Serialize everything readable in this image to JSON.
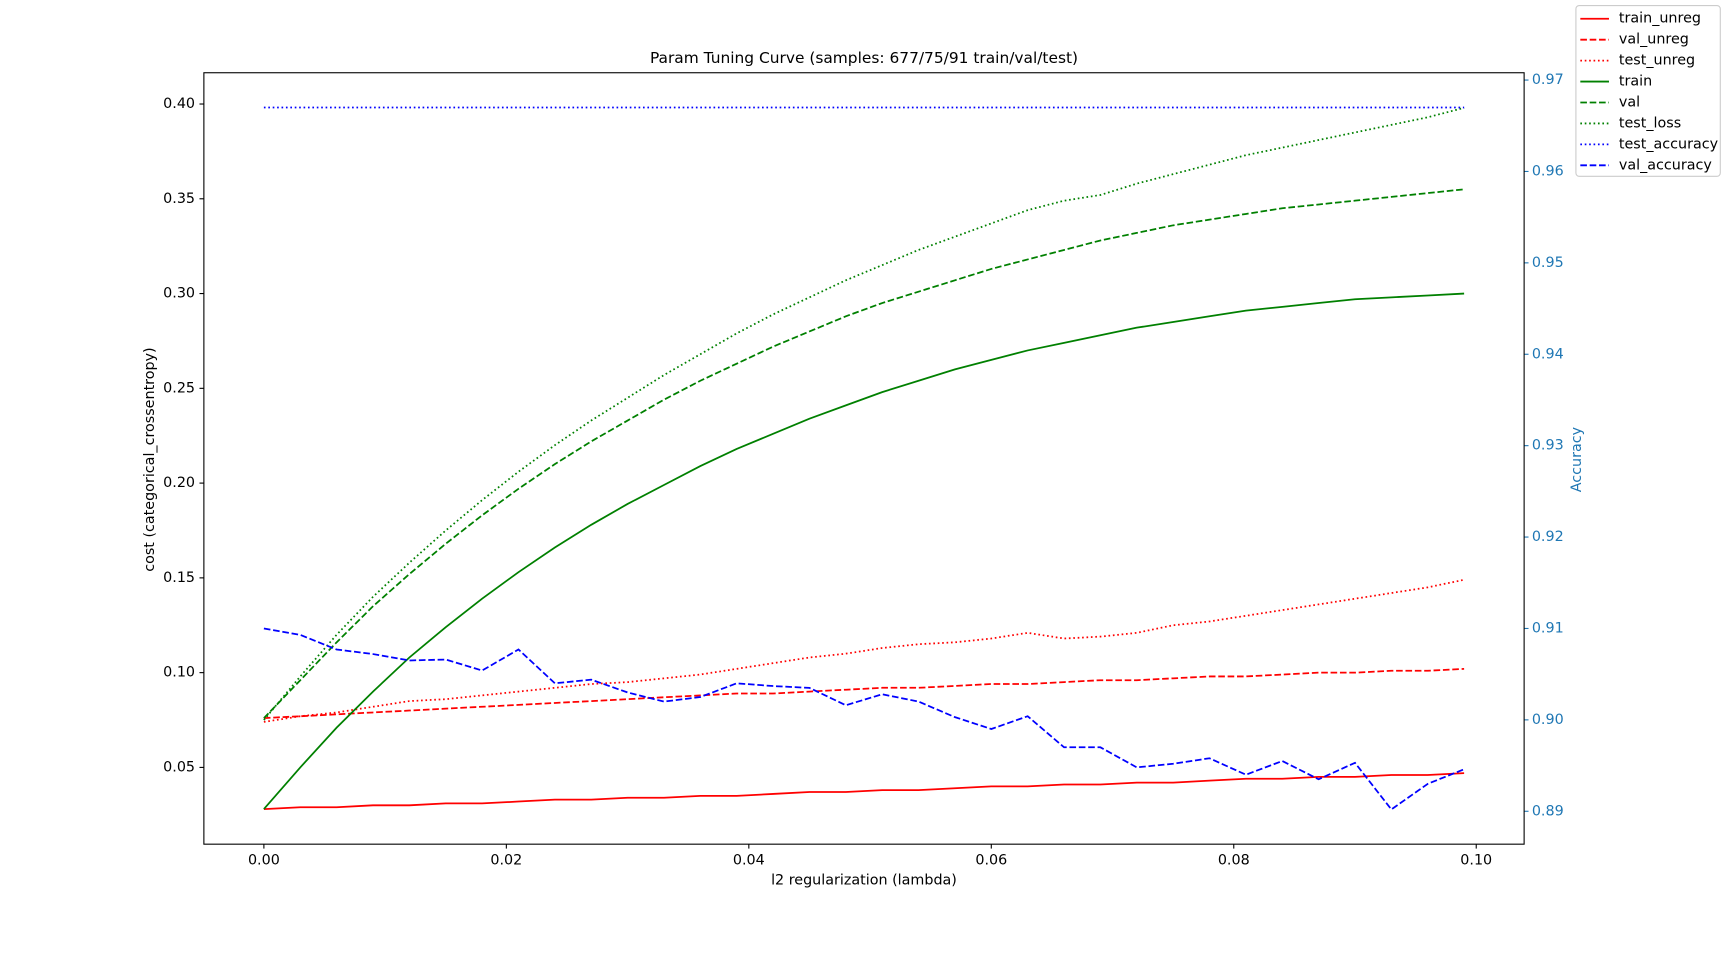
{
  "chart_data": {
    "type": "line",
    "title": "Param Tuning Curve (samples: 677/75/91 train/val/test)",
    "x_label": "l2 regularization (lambda)",
    "y_label": "cost (categorical_crossentropy)",
    "y2_label": "Accuracy",
    "y2_color": "#1f77b4",
    "legend": "upper right",
    "grid": false,
    "x": [
      0,
      0.003,
      0.006,
      0.009,
      0.012,
      0.015,
      0.018,
      0.021,
      0.024,
      0.027,
      0.03,
      0.033,
      0.036,
      0.039,
      0.042,
      0.045,
      0.048,
      0.051,
      0.054,
      0.057,
      0.06,
      0.063,
      0.066,
      0.069,
      0.072,
      0.075,
      0.078,
      0.081,
      0.084,
      0.087,
      0.09,
      0.093,
      0.096,
      0.099
    ],
    "xlim": [
      -0.00495,
      0.10395
    ],
    "xticks": [
      {
        "value": 0,
        "label": "0.00"
      },
      0.02,
      0.04,
      0.06,
      0.08,
      {
        "value": 0.1,
        "label": "0.10"
      }
    ],
    "ylim": [
      0.0095,
      0.4165
    ],
    "yticks": [
      {
        "value": 0.05,
        "label": "0.05"
      },
      {
        "value": 0.1,
        "label": "0.10"
      },
      {
        "value": 0.15,
        "label": "0.15"
      },
      {
        "value": 0.2,
        "label": "0.20"
      },
      {
        "value": 0.25,
        "label": "0.25"
      },
      {
        "value": 0.3,
        "label": "0.30"
      },
      {
        "value": 0.35,
        "label": "0.35"
      },
      {
        "value": 0.4,
        "label": "0.40"
      }
    ],
    "y2lim": [
      0.8864,
      0.9708
    ],
    "y2ticks": [
      0.89,
      {
        "value": 0.9,
        "label": "0.90"
      },
      0.91,
      0.92,
      0.93,
      0.94,
      0.95,
      0.96,
      0.97
    ],
    "series": [
      {
        "name": "train_unreg",
        "color": "#ff0000",
        "style": "solid",
        "values": [
          0.028,
          0.029,
          0.029,
          0.03,
          0.03,
          0.031,
          0.031,
          0.032,
          0.033,
          0.033,
          0.034,
          0.034,
          0.035,
          0.035,
          0.036,
          0.037,
          0.037,
          0.038,
          0.038,
          0.039,
          0.04,
          0.04,
          0.041,
          0.041,
          0.042,
          0.042,
          0.043,
          0.044,
          0.044,
          0.045,
          0.045,
          0.046,
          0.046,
          0.047
        ]
      },
      {
        "name": "val_unreg",
        "color": "#ff0000",
        "style": "dashed",
        "values": [
          0.076,
          0.077,
          0.078,
          0.079,
          0.08,
          0.081,
          0.082,
          0.083,
          0.084,
          0.085,
          0.086,
          0.087,
          0.088,
          0.089,
          0.089,
          0.09,
          0.091,
          0.092,
          0.092,
          0.093,
          0.094,
          0.094,
          0.095,
          0.096,
          0.096,
          0.097,
          0.098,
          0.098,
          0.099,
          0.1,
          0.1,
          0.101,
          0.101,
          0.102
        ]
      },
      {
        "name": "test_unreg",
        "color": "#ff0000",
        "style": "dotted",
        "values": [
          0.074,
          0.077,
          0.079,
          0.082,
          0.085,
          0.086,
          0.088,
          0.09,
          0.092,
          0.094,
          0.095,
          0.097,
          0.099,
          0.102,
          0.105,
          0.108,
          0.11,
          0.113,
          0.115,
          0.116,
          0.118,
          0.121,
          0.118,
          0.119,
          0.121,
          0.125,
          0.127,
          0.13,
          0.133,
          0.136,
          0.139,
          0.142,
          0.145,
          0.149
        ]
      },
      {
        "name": "train",
        "color": "#008000",
        "style": "solid",
        "values": [
          0.028,
          0.05,
          0.071,
          0.09,
          0.108,
          0.124,
          0.139,
          0.153,
          0.166,
          0.178,
          0.189,
          0.199,
          0.209,
          0.218,
          0.226,
          0.234,
          0.241,
          0.248,
          0.254,
          0.26,
          0.265,
          0.27,
          0.274,
          0.278,
          0.282,
          0.285,
          0.288,
          0.291,
          0.293,
          0.295,
          0.297,
          0.298,
          0.299,
          0.3
        ]
      },
      {
        "name": "val",
        "color": "#008000",
        "style": "dashed",
        "values": [
          0.076,
          0.096,
          0.116,
          0.135,
          0.152,
          0.168,
          0.183,
          0.197,
          0.21,
          0.222,
          0.233,
          0.244,
          0.254,
          0.263,
          0.272,
          0.28,
          0.288,
          0.295,
          0.301,
          0.307,
          0.313,
          0.318,
          0.323,
          0.328,
          0.332,
          0.336,
          0.339,
          0.342,
          0.345,
          0.347,
          0.349,
          0.351,
          0.353,
          0.355
        ]
      },
      {
        "name": "test_loss",
        "color": "#008000",
        "style": "dotted",
        "values": [
          0.075,
          0.098,
          0.12,
          0.14,
          0.158,
          0.175,
          0.191,
          0.206,
          0.22,
          0.233,
          0.245,
          0.257,
          0.268,
          0.279,
          0.289,
          0.298,
          0.307,
          0.315,
          0.323,
          0.33,
          0.337,
          0.344,
          0.349,
          0.352,
          0.358,
          0.363,
          0.368,
          0.373,
          0.377,
          0.381,
          0.385,
          0.389,
          0.393,
          0.398
        ]
      },
      {
        "name": "test_accuracy",
        "color": "#0000ff",
        "style": "dotted",
        "axis": "y2",
        "values": [
          0.967,
          0.967,
          0.967,
          0.967,
          0.967,
          0.967,
          0.967,
          0.967,
          0.967,
          0.967,
          0.967,
          0.967,
          0.967,
          0.967,
          0.967,
          0.967,
          0.967,
          0.967,
          0.967,
          0.967,
          0.967,
          0.967,
          0.967,
          0.967,
          0.967,
          0.967,
          0.967,
          0.967,
          0.967,
          0.967,
          0.967,
          0.967,
          0.967,
          0.967
        ]
      },
      {
        "name": "val_accuracy",
        "color": "#0000ff",
        "style": "dashed",
        "axis": "y2",
        "values": [
          0.91,
          0.9093,
          0.9077,
          0.9072,
          0.9065,
          0.9066,
          0.9054,
          0.9077,
          0.904,
          0.9044,
          0.903,
          0.902,
          0.9025,
          0.904,
          0.9037,
          0.9035,
          0.9016,
          0.9028,
          0.902,
          0.9003,
          0.899,
          0.9004,
          0.897,
          0.897,
          0.8948,
          0.8952,
          0.8958,
          0.894,
          0.8955,
          0.8935,
          0.8953,
          0.8902,
          0.893,
          0.8946
        ]
      }
    ]
  }
}
